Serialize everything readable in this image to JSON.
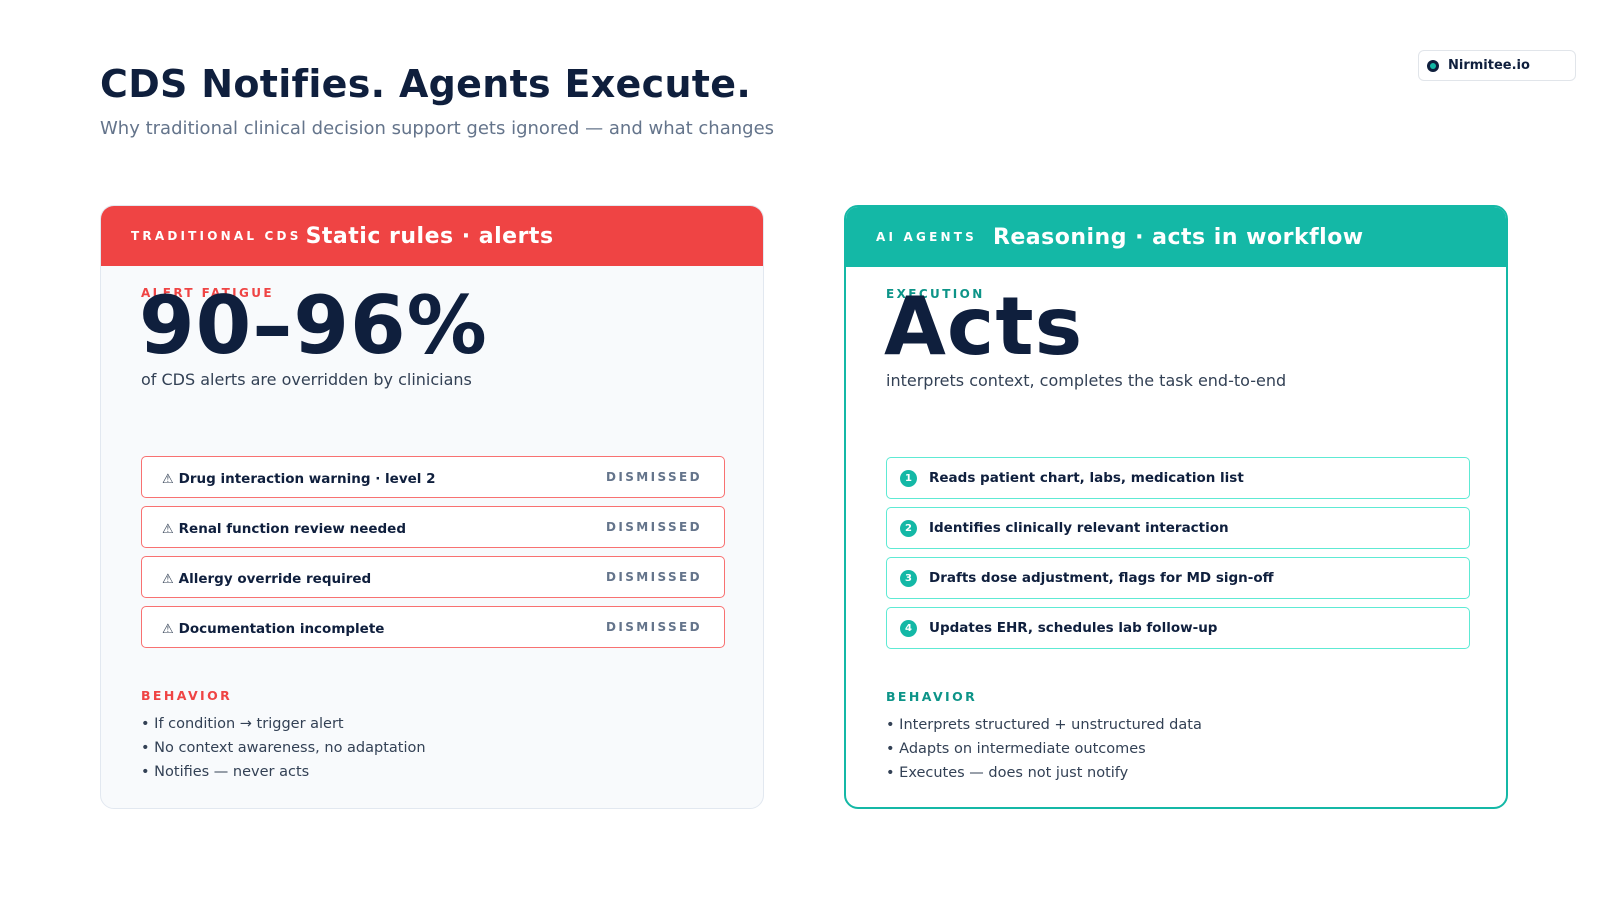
{
  "brand": {
    "name": "Nirmitee.io",
    "logo_icon": "circle-dot-icon"
  },
  "header": {
    "title": "CDS Notifies. Agents Execute.",
    "subtitle": "Why traditional clinical decision support gets ignored — and what changes"
  },
  "left_card": {
    "kicker": "TRADITIONAL CDS",
    "title": "Static rules · alerts",
    "stat_label": "ALERT FATIGUE",
    "stat_value": "90–96%",
    "stat_desc": "of CDS alerts are overridden by clinicians",
    "alerts": [
      {
        "icon": "⚠",
        "label": "Drug interaction warning · level 2",
        "status": "DISMISSED"
      },
      {
        "icon": "⚠",
        "label": "Renal function review needed",
        "status": "DISMISSED"
      },
      {
        "icon": "⚠",
        "label": "Allergy override required",
        "status": "DISMISSED"
      },
      {
        "icon": "⚠",
        "label": "Documentation incomplete",
        "status": "DISMISSED"
      }
    ],
    "behavior_label": "BEHAVIOR",
    "behavior": [
      "• If condition → trigger alert",
      "• No context awareness, no adaptation",
      "• Notifies — never acts"
    ],
    "accent_color": "#ef4444"
  },
  "right_card": {
    "kicker": "AI AGENTS",
    "title": "Reasoning · acts in workflow",
    "stat_label": "EXECUTION",
    "stat_value": "Acts",
    "stat_desc": "interprets context, completes the task end-to-end",
    "steps": [
      {
        "num": "1",
        "label": "Reads patient chart, labs, medication list"
      },
      {
        "num": "2",
        "label": "Identifies clinically relevant interaction"
      },
      {
        "num": "3",
        "label": "Drafts dose adjustment, flags for MD sign-off"
      },
      {
        "num": "4",
        "label": "Updates EHR, schedules lab follow-up"
      }
    ],
    "behavior_label": "BEHAVIOR",
    "behavior": [
      "• Interprets structured + unstructured data",
      "• Adapts on intermediate outcomes",
      "• Executes — does not just notify"
    ],
    "accent_color": "#14b8a6"
  }
}
